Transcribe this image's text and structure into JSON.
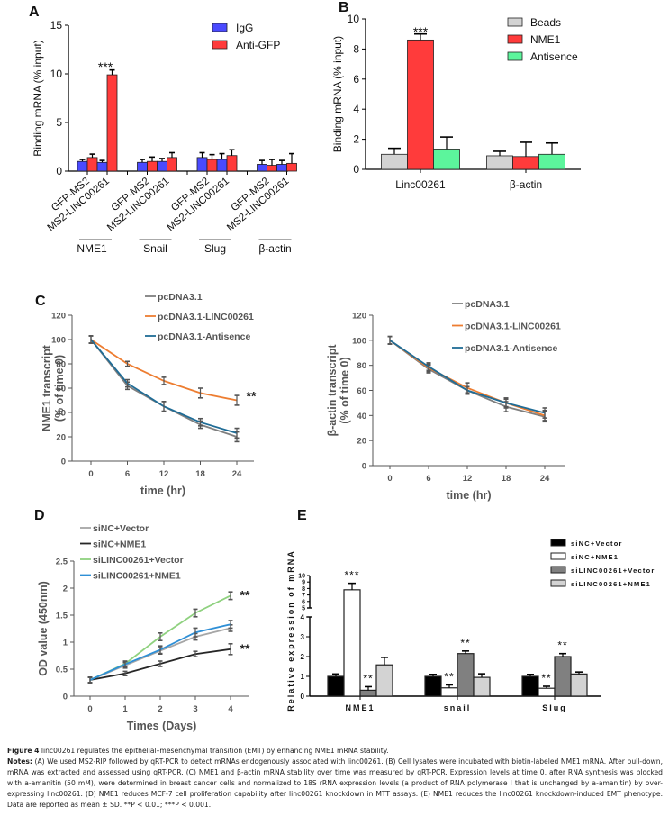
{
  "figure": {
    "caption_label": "Figure 4",
    "caption_title": "linc00261 regulates the epithelial–mesenchymal transition (EMT) by enhancing NME1 mRNA stability.",
    "notes_label": "Notes:",
    "notes_text": "(A) We used MS2-RIP followed by qRT-PCR to detect mRNAs endogenously associated with linc00261. (B) Cell lysates were incubated with biotin-labeled NME1 mRNA. After pull-down, mRNA was extracted and assessed using qRT-PCR. (C) NME1 and β-actin mRNA stability over time was measured by qRT-PCR. Expression levels at time 0, after RNA synthesis was blocked with a-amanitin (50 mM), were determined in breast cancer cells and normalized to 18S rRNA expression levels (a product of RNA polymerase I that is unchanged by a-amanitin) by over-expressing linc00261. (D) NME1 reduces MCF-7 cell proliferation capability after linc00261 knockdown in MTT assays. (E) NME1 reduces the linc00261 knockdown-induced EMT phenotype. Data are reported as mean ± SD.",
    "significance_text": "**P < 0.01; ***P < 0.001."
  },
  "chart_data": [
    {
      "panel": "A",
      "type": "bar",
      "ylabel": "Binding mRNA (% input)",
      "ylim": [
        0,
        15
      ],
      "yticks": [
        0,
        5,
        10,
        15
      ],
      "groups": [
        "NME1",
        "Snail",
        "Slug",
        "β-actin"
      ],
      "categories": [
        "GFP-MS2",
        "MS2-LINC00261"
      ],
      "legend": "top-right",
      "series": [
        {
          "name": "IgG",
          "color": "#4a4aff",
          "values": [
            [
              1.0,
              0.9
            ],
            [
              0.9,
              1.0
            ],
            [
              1.4,
              1.2
            ],
            [
              0.7,
              0.7
            ]
          ],
          "errors": [
            [
              0.2,
              0.2
            ],
            [
              0.3,
              0.3
            ],
            [
              0.5,
              0.6
            ],
            [
              0.4,
              0.4
            ]
          ]
        },
        {
          "name": "Anti-GFP",
          "color": "#ff3b3b",
          "values": [
            [
              1.4,
              9.9
            ],
            [
              1.0,
              1.4
            ],
            [
              1.2,
              1.6
            ],
            [
              0.6,
              0.8
            ]
          ],
          "errors": [
            [
              0.35,
              0.5
            ],
            [
              0.45,
              0.5
            ],
            [
              0.5,
              0.6
            ],
            [
              0.6,
              1.0
            ]
          ]
        }
      ],
      "annotations": [
        {
          "group": 0,
          "category": 1,
          "text": "***"
        }
      ]
    },
    {
      "panel": "B",
      "type": "bar",
      "ylabel": "Binding mRNA (% input)",
      "ylim": [
        0,
        10
      ],
      "yticks": [
        0,
        2,
        4,
        6,
        8,
        10
      ],
      "categories": [
        "Linc00261",
        "β-actin"
      ],
      "legend": "top-right",
      "series": [
        {
          "name": "Beads",
          "color": "#d3d3d3",
          "values": [
            1.0,
            0.9
          ],
          "errors": [
            0.4,
            0.3
          ]
        },
        {
          "name": "NME1",
          "color": "#ff3b3b",
          "values": [
            8.6,
            0.85
          ],
          "errors": [
            0.4,
            0.95
          ]
        },
        {
          "name": "Antisence",
          "color": "#5cf59c",
          "values": [
            1.35,
            1.0
          ],
          "errors": [
            0.8,
            0.75
          ]
        }
      ],
      "annotations": [
        {
          "category": 0,
          "series": 1,
          "text": "***"
        }
      ]
    },
    {
      "panel": "C-left",
      "type": "line",
      "xlabel": "time (hr)",
      "ylabel": "NME1 transcript (% of time 0)",
      "x": [
        0,
        6,
        12,
        18,
        24
      ],
      "ylim": [
        0,
        120
      ],
      "yticks": [
        0,
        20,
        40,
        60,
        80,
        100,
        120
      ],
      "legend": "top",
      "series": [
        {
          "name": "pcDNA3.1",
          "color": "#7f7f7f",
          "values": [
            100,
            62,
            45,
            30,
            20
          ],
          "errors": [
            3,
            3,
            4,
            3,
            4
          ]
        },
        {
          "name": "pcDNA3.1-LINC00261",
          "color": "#ed7d31",
          "values": [
            100,
            80,
            66,
            56,
            50
          ],
          "errors": [
            3,
            2,
            3,
            4,
            4
          ]
        },
        {
          "name": "pcDNA3.1-Antisence",
          "color": "#1f6c96",
          "values": [
            100,
            64,
            45,
            32,
            23
          ],
          "errors": [
            3,
            3,
            4,
            3,
            4
          ]
        }
      ],
      "annotations": [
        {
          "x": 24,
          "text": "**"
        }
      ]
    },
    {
      "panel": "C-right",
      "type": "line",
      "xlabel": "time (hr)",
      "ylabel": "β-actin transcript (% of time 0)",
      "x": [
        0,
        6,
        12,
        18,
        24
      ],
      "ylim": [
        0,
        120
      ],
      "yticks": [
        0,
        20,
        40,
        60,
        80,
        100,
        120
      ],
      "legend": "top",
      "series": [
        {
          "name": "pcDNA3.1",
          "color": "#7f7f7f",
          "values": [
            100,
            77,
            60,
            47,
            39
          ],
          "errors": [
            3,
            3,
            3,
            4,
            4
          ]
        },
        {
          "name": "pcDNA3.1-LINC00261",
          "color": "#ed7d31",
          "values": [
            100,
            78,
            62,
            50,
            40
          ],
          "errors": [
            3,
            3,
            4,
            4,
            4
          ]
        },
        {
          "name": "pcDNA3.1-Antisence",
          "color": "#1f6c96",
          "values": [
            100,
            79,
            60,
            50,
            42
          ],
          "errors": [
            3,
            3,
            3,
            3,
            4
          ]
        }
      ]
    },
    {
      "panel": "D",
      "type": "line",
      "xlabel": "Times (Days)",
      "ylabel": "OD value (450nm)",
      "x": [
        0,
        1,
        2,
        3,
        4
      ],
      "ylim": [
        0,
        2.5
      ],
      "yticks": [
        0,
        0.5,
        1,
        1.5,
        2,
        2.5
      ],
      "legend": "top-left",
      "series": [
        {
          "name": "siNC+Vector",
          "color": "#a6a6a6",
          "values": [
            0.3,
            0.57,
            0.84,
            1.1,
            1.26
          ],
          "errors": [
            0.05,
            0.05,
            0.06,
            0.06,
            0.06
          ]
        },
        {
          "name": "siNC+NME1",
          "color": "#262626",
          "values": [
            0.3,
            0.42,
            0.6,
            0.78,
            0.87
          ],
          "errors": [
            0.05,
            0.04,
            0.05,
            0.05,
            0.1
          ]
        },
        {
          "name": "siLINC00261+Vector",
          "color": "#8fd17f",
          "values": [
            0.3,
            0.6,
            1.1,
            1.54,
            1.86
          ],
          "errors": [
            0.05,
            0.05,
            0.07,
            0.07,
            0.07
          ]
        },
        {
          "name": "siLINC00261+NME1",
          "color": "#2e8fd6",
          "values": [
            0.3,
            0.59,
            0.86,
            1.18,
            1.33
          ],
          "errors": [
            0.05,
            0.05,
            0.07,
            0.08,
            0.07
          ]
        }
      ],
      "annotations": [
        {
          "x": 4,
          "series": 2,
          "text": "**"
        },
        {
          "x": 4,
          "series": 1,
          "text": "**"
        }
      ]
    },
    {
      "panel": "E",
      "type": "bar",
      "ylabel": "Relative expression of mRNA",
      "ylim": [
        0,
        10
      ],
      "axis_break": [
        4,
        5
      ],
      "yticks_lower": [
        0,
        1,
        2,
        3,
        4
      ],
      "yticks_upper": [
        5,
        6,
        7,
        8,
        9,
        10
      ],
      "categories": [
        "NME1",
        "snail",
        "Slug"
      ],
      "legend": "top-right",
      "series": [
        {
          "name": "siNC+Vector",
          "color": "#000000",
          "values": [
            1.0,
            1.0,
            1.0
          ],
          "errors": [
            0.12,
            0.1,
            0.1
          ]
        },
        {
          "name": "siNC+NME1",
          "color": "#ffffff",
          "values": [
            7.8,
            0.42,
            0.4
          ],
          "errors": [
            1.0,
            0.15,
            0.1
          ]
        },
        {
          "name": "siLINC00261+Vector",
          "color": "#808080",
          "values": [
            0.3,
            2.15,
            2.0
          ],
          "errors": [
            0.18,
            0.13,
            0.15
          ]
        },
        {
          "name": "siLINC00261+NME1",
          "color": "#d3d3d3",
          "values": [
            1.58,
            0.95,
            1.12
          ],
          "errors": [
            0.38,
            0.18,
            0.1
          ]
        }
      ],
      "annotations": [
        {
          "category": 0,
          "series": 1,
          "text": "***"
        },
        {
          "category": 0,
          "series": 2,
          "text": "**"
        },
        {
          "category": 1,
          "series": 1,
          "text": "**"
        },
        {
          "category": 1,
          "series": 2,
          "text": "**"
        },
        {
          "category": 2,
          "series": 1,
          "text": "**"
        },
        {
          "category": 2,
          "series": 2,
          "text": "**"
        }
      ]
    }
  ]
}
